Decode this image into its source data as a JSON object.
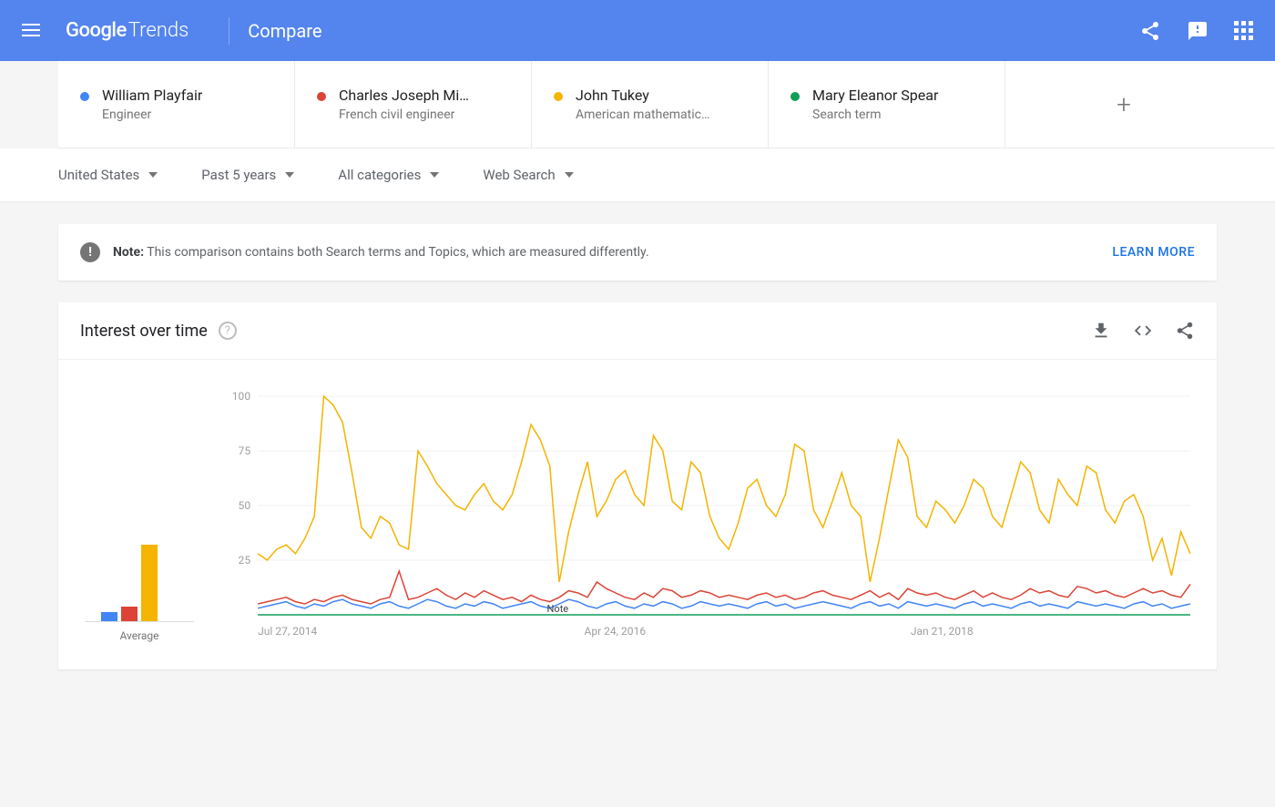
{
  "header": {
    "logo_google": "Google",
    "logo_trends": "Trends",
    "title": "Compare"
  },
  "colors": {
    "header_bg": "#5484ed",
    "blue": "#4285f4",
    "red": "#db4437",
    "yellow": "#f4b400",
    "green": "#0f9d58"
  },
  "compare_terms": [
    {
      "term": "William Playfair",
      "sub": "Engineer",
      "color": "#4285f4"
    },
    {
      "term": "Charles Joseph Mi…",
      "sub": "French civil engineer",
      "color": "#db4437"
    },
    {
      "term": "John Tukey",
      "sub": "American mathematic…",
      "color": "#f4b400"
    },
    {
      "term": "Mary Eleanor Spear",
      "sub": "Search term",
      "color": "#0f9d58"
    }
  ],
  "filters": [
    {
      "label": "United States"
    },
    {
      "label": "Past 5 years"
    },
    {
      "label": "All categories"
    },
    {
      "label": "Web Search"
    }
  ],
  "note": {
    "prefix": "Note:",
    "text": "This comparison contains both Search terms and Topics, which are measured differently.",
    "learn_more": "LEARN MORE"
  },
  "chart": {
    "title": "Interest over time",
    "type": "line",
    "ylim": [
      0,
      100
    ],
    "yticks": [
      25,
      50,
      75,
      100
    ],
    "xticks": [
      "Jul 27, 2014",
      "Apr 24, 2016",
      "Jan 21, 2018"
    ],
    "note_marker": "Note",
    "average_label": "Average",
    "average_bars": [
      {
        "value": 5,
        "color": "#4285f4"
      },
      {
        "value": 8,
        "color": "#db4437"
      },
      {
        "value": 42,
        "color": "#f4b400"
      },
      {
        "value": 0,
        "color": "#0f9d58"
      }
    ],
    "series": [
      {
        "name": "William Playfair",
        "color": "#4285f4",
        "values": [
          3,
          4,
          5,
          6,
          4,
          3,
          5,
          4,
          6,
          7,
          5,
          4,
          3,
          5,
          6,
          4,
          3,
          5,
          7,
          6,
          4,
          3,
          5,
          4,
          6,
          5,
          3,
          4,
          5,
          6,
          4,
          3,
          5,
          7,
          6,
          4,
          3,
          5,
          6,
          4,
          3,
          5,
          4,
          6,
          5,
          3,
          4,
          6,
          5,
          4,
          5,
          4,
          3,
          5,
          6,
          4,
          5,
          3,
          4,
          5,
          6,
          5,
          4,
          3,
          5,
          6,
          4,
          5,
          3,
          6,
          5,
          4,
          5,
          4,
          3,
          5,
          6,
          4,
          5,
          4,
          3,
          5,
          6,
          4,
          5,
          4,
          3,
          6,
          5,
          4,
          5,
          4,
          3,
          5,
          6,
          4,
          5,
          3,
          4,
          5
        ]
      },
      {
        "name": "Charles Joseph Minard",
        "color": "#db4437",
        "values": [
          5,
          6,
          7,
          8,
          6,
          5,
          7,
          6,
          8,
          9,
          7,
          6,
          5,
          7,
          8,
          20,
          7,
          8,
          10,
          12,
          9,
          7,
          10,
          8,
          11,
          9,
          7,
          8,
          6,
          9,
          7,
          6,
          8,
          11,
          10,
          8,
          15,
          12,
          10,
          8,
          7,
          10,
          8,
          12,
          11,
          8,
          9,
          11,
          10,
          8,
          9,
          8,
          7,
          9,
          10,
          8,
          9,
          7,
          8,
          10,
          11,
          9,
          8,
          7,
          9,
          11,
          8,
          10,
          7,
          12,
          10,
          9,
          10,
          8,
          7,
          9,
          11,
          8,
          10,
          8,
          7,
          9,
          12,
          10,
          11,
          9,
          8,
          13,
          12,
          10,
          11,
          9,
          8,
          10,
          12,
          10,
          11,
          9,
          8,
          14
        ]
      },
      {
        "name": "John Tukey",
        "color": "#f4b400",
        "values": [
          28,
          25,
          30,
          32,
          28,
          35,
          45,
          100,
          96,
          88,
          65,
          40,
          35,
          45,
          42,
          32,
          30,
          75,
          68,
          60,
          55,
          50,
          48,
          55,
          60,
          52,
          48,
          55,
          70,
          87,
          80,
          68,
          15,
          38,
          55,
          70,
          45,
          52,
          62,
          66,
          55,
          50,
          82,
          75,
          52,
          48,
          70,
          65,
          45,
          35,
          30,
          42,
          58,
          62,
          50,
          45,
          55,
          78,
          75,
          48,
          40,
          52,
          65,
          50,
          45,
          15,
          35,
          58,
          80,
          72,
          45,
          40,
          52,
          48,
          42,
          50,
          62,
          58,
          45,
          40,
          55,
          70,
          65,
          48,
          42,
          62,
          55,
          50,
          68,
          65,
          48,
          42,
          52,
          55,
          45,
          25,
          35,
          18,
          38,
          28
        ]
      },
      {
        "name": "Mary Eleanor Spear",
        "color": "#0f9d58",
        "values": [
          0,
          0,
          0,
          0,
          0,
          0,
          0,
          0,
          0,
          0,
          0,
          0,
          0,
          0,
          0,
          0,
          0,
          0,
          0,
          0,
          0,
          0,
          0,
          0,
          0,
          0,
          0,
          0,
          0,
          0,
          0,
          0,
          0,
          0,
          0,
          0,
          0,
          0,
          0,
          0,
          0,
          0,
          0,
          0,
          0,
          0,
          0,
          0,
          0,
          0,
          0,
          0,
          0,
          0,
          0,
          0,
          0,
          0,
          0,
          0,
          0,
          0,
          0,
          0,
          0,
          0,
          0,
          0,
          0,
          0,
          0,
          0,
          0,
          0,
          0,
          0,
          0,
          0,
          0,
          0,
          0,
          0,
          0,
          0,
          0,
          0,
          0,
          0,
          0,
          0,
          0,
          0,
          0,
          0,
          0,
          0,
          0,
          0,
          0,
          0
        ]
      }
    ]
  }
}
